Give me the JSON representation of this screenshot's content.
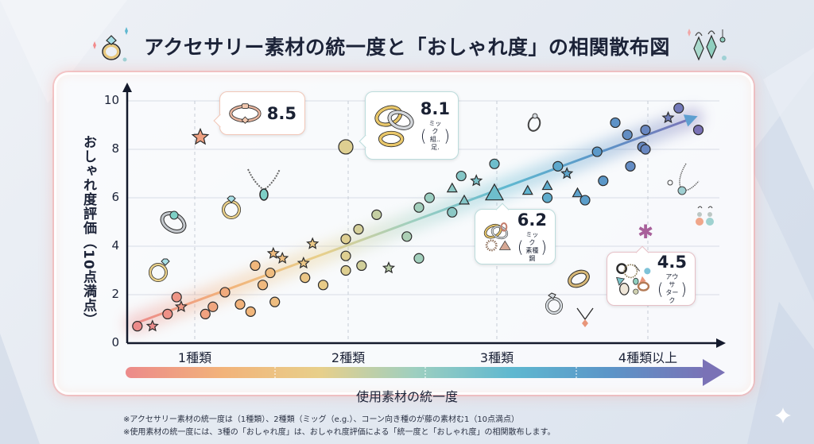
{
  "title": "アクセサリー素材の統一度と「おしゃれ度」の相関散布図",
  "chart_data": {
    "type": "scatter",
    "title": "アクセサリー素材の統一度と「おしゃれ度」の相関散布図",
    "xlabel": "使用素材の統一度",
    "ylabel": "おしゃれ度評価（10点満点）",
    "categories": [
      "1種類",
      "2種類",
      "3種類",
      "4種類以上"
    ],
    "yticks": [
      0,
      2,
      4,
      6,
      8,
      10
    ],
    "ylim": [
      0,
      10
    ],
    "grid": true,
    "trend": {
      "from": [
        0.6,
        0.8
      ],
      "to": [
        4.5,
        9.3
      ],
      "style": "arrow-gradient"
    },
    "highlights": [
      {
        "label": "8.5",
        "x": 1.0,
        "y": 8.5,
        "marker": "star",
        "note": ""
      },
      {
        "label": "8.1",
        "x": 2.0,
        "y": 8.1,
        "marker": "circle",
        "note": "ミック 組..足."
      },
      {
        "label": "6.2",
        "x": 3.0,
        "y": 6.2,
        "marker": "triangle",
        "note": "ミック 素種鋼"
      },
      {
        "label": "4.5",
        "x": 4.0,
        "y": 4.5,
        "marker": "asterisk",
        "note": "アウサ ターク"
      }
    ],
    "points": [
      {
        "x": 0.62,
        "y": 0.7,
        "m": "circle"
      },
      {
        "x": 0.72,
        "y": 0.7,
        "m": "star"
      },
      {
        "x": 0.82,
        "y": 1.2,
        "m": "circle"
      },
      {
        "x": 0.88,
        "y": 1.9,
        "m": "circle"
      },
      {
        "x": 0.91,
        "y": 1.5,
        "m": "star"
      },
      {
        "x": 1.12,
        "y": 1.5,
        "m": "circle"
      },
      {
        "x": 1.07,
        "y": 1.2,
        "m": "circle"
      },
      {
        "x": 1.2,
        "y": 2.1,
        "m": "circle"
      },
      {
        "x": 1.3,
        "y": 1.6,
        "m": "circle"
      },
      {
        "x": 1.37,
        "y": 1.3,
        "m": "circle"
      },
      {
        "x": 1.4,
        "y": 3.2,
        "m": "circle"
      },
      {
        "x": 1.52,
        "y": 3.7,
        "m": "star"
      },
      {
        "x": 1.58,
        "y": 3.5,
        "m": "star"
      },
      {
        "x": 1.5,
        "y": 2.9,
        "m": "circle"
      },
      {
        "x": 1.45,
        "y": 2.4,
        "m": "circle"
      },
      {
        "x": 1.53,
        "y": 1.7,
        "m": "circle"
      },
      {
        "x": 1.73,
        "y": 2.7,
        "m": "circle"
      },
      {
        "x": 1.72,
        "y": 3.3,
        "m": "star"
      },
      {
        "x": 1.78,
        "y": 4.1,
        "m": "star"
      },
      {
        "x": 1.85,
        "y": 2.4,
        "m": "circle"
      },
      {
        "x": 2.0,
        "y": 3.0,
        "m": "circle"
      },
      {
        "x": 2.0,
        "y": 3.6,
        "m": "circle"
      },
      {
        "x": 2.0,
        "y": 4.3,
        "m": "circle"
      },
      {
        "x": 2.1,
        "y": 4.7,
        "m": "circle"
      },
      {
        "x": 2.12,
        "y": 3.2,
        "m": "circle"
      },
      {
        "x": 2.22,
        "y": 5.3,
        "m": "circle"
      },
      {
        "x": 2.3,
        "y": 3.1,
        "m": "star"
      },
      {
        "x": 2.42,
        "y": 4.4,
        "m": "circle"
      },
      {
        "x": 2.5,
        "y": 3.5,
        "m": "circle"
      },
      {
        "x": 2.5,
        "y": 5.6,
        "m": "circle"
      },
      {
        "x": 2.57,
        "y": 6.0,
        "m": "circle"
      },
      {
        "x": 2.72,
        "y": 6.4,
        "m": "triangle"
      },
      {
        "x": 2.72,
        "y": 5.4,
        "m": "circle"
      },
      {
        "x": 2.8,
        "y": 5.9,
        "m": "triangle"
      },
      {
        "x": 2.78,
        "y": 6.9,
        "m": "circle"
      },
      {
        "x": 2.88,
        "y": 6.7,
        "m": "star"
      },
      {
        "x": 3.0,
        "y": 7.4,
        "m": "circle"
      },
      {
        "x": 3.22,
        "y": 6.3,
        "m": "triangle"
      },
      {
        "x": 3.35,
        "y": 6.5,
        "m": "triangle"
      },
      {
        "x": 3.42,
        "y": 7.3,
        "m": "circle"
      },
      {
        "x": 3.35,
        "y": 6.0,
        "m": "circle"
      },
      {
        "x": 3.48,
        "y": 7.0,
        "m": "star"
      },
      {
        "x": 3.55,
        "y": 6.2,
        "m": "triangle"
      },
      {
        "x": 3.6,
        "y": 5.9,
        "m": "circle"
      },
      {
        "x": 3.68,
        "y": 7.9,
        "m": "circle"
      },
      {
        "x": 3.72,
        "y": 6.7,
        "m": "circle"
      },
      {
        "x": 3.8,
        "y": 9.1,
        "m": "circle"
      },
      {
        "x": 3.88,
        "y": 8.6,
        "m": "circle"
      },
      {
        "x": 3.9,
        "y": 7.3,
        "m": "circle"
      },
      {
        "x": 3.98,
        "y": 8.1,
        "m": "circle"
      },
      {
        "x": 4.0,
        "y": 8.8,
        "m": "circle"
      },
      {
        "x": 4.15,
        "y": 9.3,
        "m": "star"
      },
      {
        "x": 4.22,
        "y": 9.7,
        "m": "circle"
      },
      {
        "x": 4.35,
        "y": 8.8,
        "m": "circle"
      },
      {
        "x": 4.0,
        "y": 8.0,
        "m": "circle"
      }
    ]
  },
  "y_axis": {
    "label": "おしゃれ度評価（10点満点）",
    "ticks": [
      "0",
      "2",
      "4",
      "6",
      "8",
      "10"
    ]
  },
  "x_axis": {
    "label": "使用素材の統一度",
    "categories": [
      "1種類",
      "2種類",
      "3種類",
      "4種類以上"
    ]
  },
  "callouts": {
    "c1": {
      "value": "8.5"
    },
    "c2": {
      "value": "8.1",
      "note_line1": "ミック",
      "note_line2": "組..足."
    },
    "c3": {
      "value": "6.2",
      "note_line1": "ミック",
      "note_line2": "素種鋼"
    },
    "c4": {
      "value": "4.5",
      "note_line1": "アウサ",
      "note_line2": "ターク"
    }
  },
  "notes": [
    "※アクセサリー素材の統一度は（1種類）、2種類（ミッグ（e.g.）、コーン向き種のが藤の素材む1（10点満点）",
    "※使用素材の統一度には、3種の「おしゃれ度」は、おしゃれ度評価による「統一度と「おしゃれ度」の相関散布します。"
  ],
  "colors": {
    "gradient": [
      "#ec8a8a",
      "#f2b37a",
      "#e8cf8a",
      "#9dcfc0",
      "#5fb8d0",
      "#5b95c8",
      "#7a72b6"
    ],
    "axis": "#141a2c",
    "text": "#1c2338",
    "panel_glow": "#f4aaaa"
  }
}
